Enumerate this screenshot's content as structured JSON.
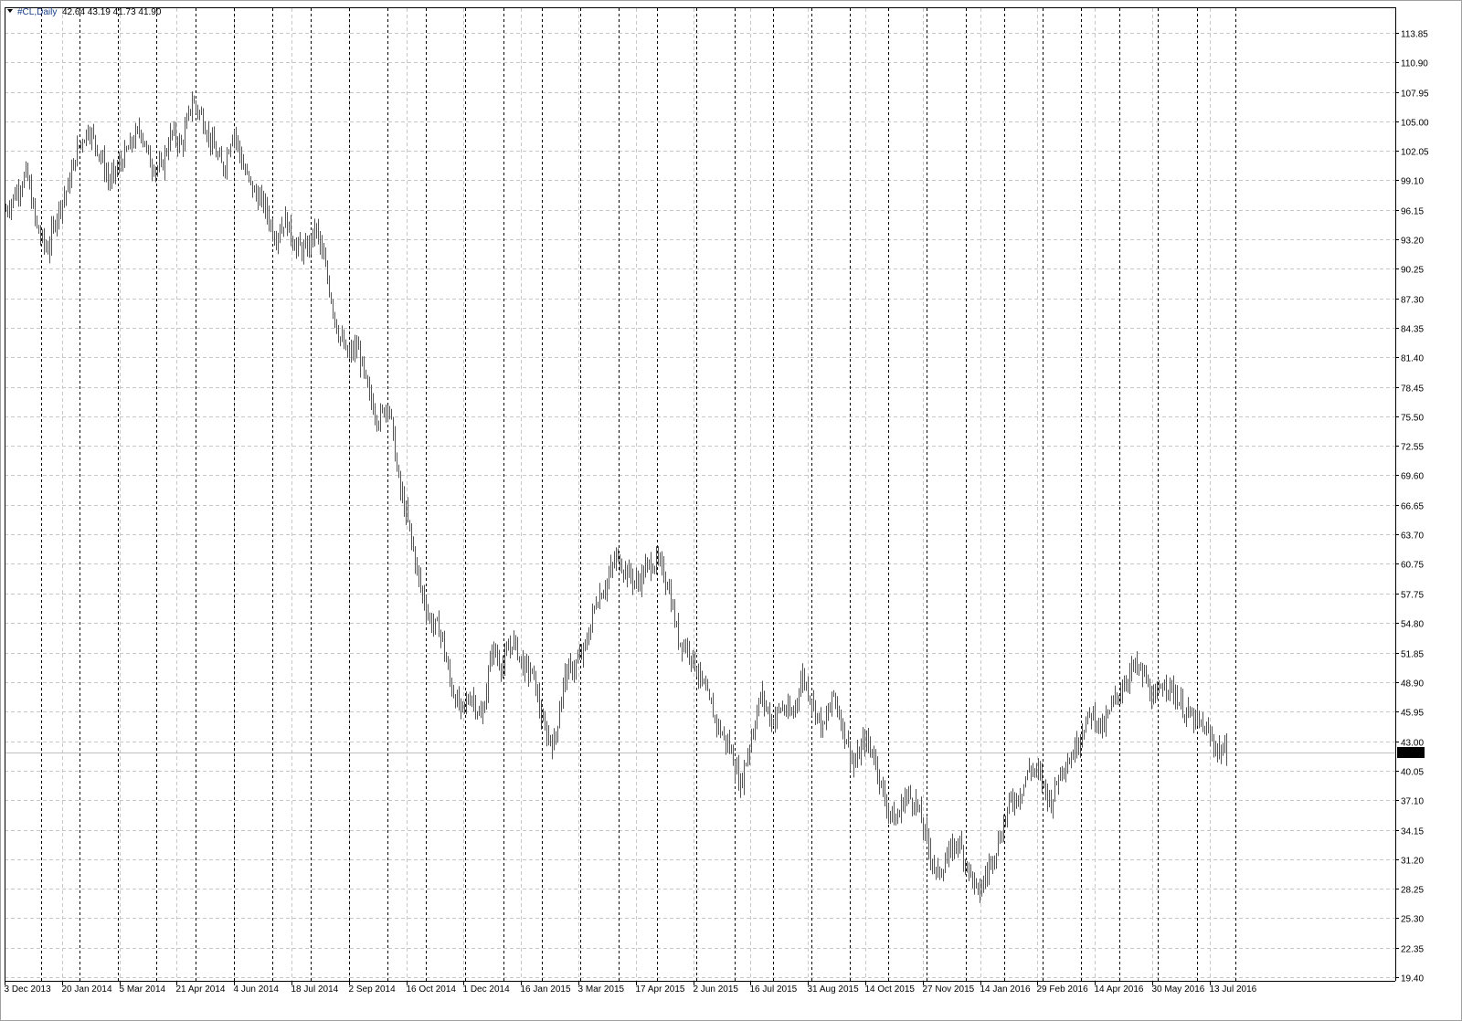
{
  "header": {
    "symbol": "#CL,Daily",
    "ohlc": "42.64 43.19 41.73 41.90",
    "menu_icon": "triangle-down-icon"
  },
  "colors": {
    "bars": "#555555",
    "grid": "#c8c8c8",
    "separator": "#000000",
    "last_price_bg": "#000000",
    "last_price_fg": "#ffffff"
  },
  "chart_data": {
    "type": "ohlc-bar",
    "title": "#CL,Daily",
    "ylim": [
      19.4,
      113.85
    ],
    "grid": true,
    "period_separators": true,
    "y_ticks": [
      "113.85",
      "110.90",
      "107.95",
      "105.00",
      "102.05",
      "99.10",
      "96.15",
      "93.20",
      "90.25",
      "87.30",
      "84.35",
      "81.40",
      "78.45",
      "75.50",
      "72.55",
      "69.60",
      "66.65",
      "63.70",
      "60.75",
      "57.75",
      "54.80",
      "51.85",
      "48.90",
      "45.95",
      "43.00",
      "40.05",
      "37.10",
      "34.15",
      "31.20",
      "28.25",
      "25.30",
      "22.35",
      "19.40"
    ],
    "x_ticks": [
      "3 Dec 2013",
      "20 Jan 2014",
      "5 Mar 2014",
      "21 Apr 2014",
      "4 Jun 2014",
      "18 Jul 2014",
      "2 Sep 2014",
      "16 Oct 2014",
      "1 Dec 2014",
      "16 Jan 2015",
      "3 Mar 2015",
      "17 Apr 2015",
      "2 Jun 2015",
      "16 Jul 2015",
      "31 Aug 2015",
      "14 Oct 2015",
      "27 Nov 2015",
      "14 Jan 2016",
      "29 Feb 2016",
      "14 Apr 2016",
      "30 May 2016",
      "13 Jul 2016"
    ],
    "last_price": "41.90",
    "close_samples": [
      96.1,
      97.9,
      99.8,
      94.3,
      92.0,
      96.0,
      98.4,
      102.5,
      104.3,
      102.0,
      98.9,
      100.7,
      102.5,
      104.3,
      100.7,
      100.2,
      103.9,
      102.5,
      107.1,
      105.3,
      102.5,
      100.2,
      104.3,
      100.2,
      97.9,
      96.6,
      93.4,
      95.2,
      92.5,
      92.0,
      94.3,
      89.7,
      84.3,
      81.5,
      82.4,
      77.9,
      75.1,
      77.0,
      68.7,
      64.2,
      58.7,
      55.0,
      54.1,
      48.6,
      45.9,
      47.7,
      45.0,
      52.3,
      50.5,
      53.2,
      50.5,
      49.6,
      44.1,
      42.7,
      49.6,
      50.5,
      52.3,
      56.9,
      58.7,
      61.4,
      60.0,
      58.7,
      60.5,
      61.0,
      58.7,
      53.2,
      52.3,
      49.6,
      46.8,
      44.1,
      42.3,
      38.6,
      43.2,
      47.7,
      45.0,
      46.4,
      45.5,
      49.6,
      46.8,
      44.1,
      47.7,
      44.1,
      40.4,
      43.2,
      41.4,
      36.8,
      34.9,
      37.7,
      36.8,
      33.1,
      29.5,
      31.3,
      33.1,
      30.4,
      27.6,
      30.4,
      33.1,
      36.8,
      37.7,
      40.4,
      39.5,
      36.8,
      40.4,
      41.4,
      44.1,
      45.9,
      44.1,
      46.8,
      48.6,
      50.5,
      49.6,
      46.8,
      49.1,
      47.7,
      45.9,
      45.0,
      44.1,
      42.3,
      41.9
    ]
  }
}
